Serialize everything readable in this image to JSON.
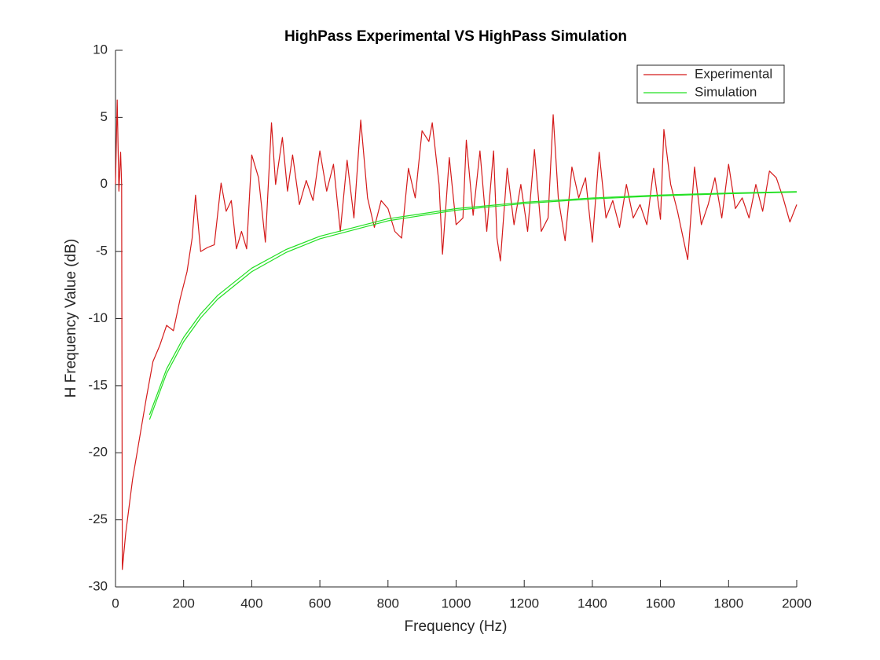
{
  "chart_data": {
    "type": "line",
    "title": "HighPass Experimental VS HighPass Simulation",
    "x_label": "Frequency (Hz)",
    "y_label": "H Frequency Value (dB)",
    "xlim": [
      0,
      2000
    ],
    "ylim": [
      -30,
      10
    ],
    "xticks": [
      0,
      200,
      400,
      600,
      800,
      1000,
      1200,
      1400,
      1600,
      1800,
      2000
    ],
    "yticks": [
      -30,
      -25,
      -20,
      -15,
      -10,
      -5,
      0,
      5,
      10
    ],
    "grid": false,
    "legend": "top-right",
    "series": [
      {
        "name": "Experimental",
        "color": "#d41a1a",
        "legend": true,
        "x": [
          0,
          5,
          10,
          15,
          18,
          20,
          30,
          50,
          70,
          90,
          110,
          130,
          150,
          170,
          190,
          210,
          225,
          235,
          250,
          270,
          290,
          310,
          325,
          340,
          355,
          370,
          385,
          400,
          420,
          440,
          458,
          470,
          490,
          505,
          520,
          540,
          560,
          580,
          600,
          620,
          640,
          660,
          680,
          700,
          720,
          740,
          760,
          780,
          800,
          820,
          840,
          860,
          880,
          900,
          920,
          930,
          950,
          960,
          980,
          1000,
          1020,
          1030,
          1050,
          1070,
          1090,
          1110,
          1120,
          1130,
          1150,
          1170,
          1190,
          1210,
          1230,
          1250,
          1270,
          1285,
          1300,
          1320,
          1340,
          1360,
          1380,
          1400,
          1420,
          1440,
          1460,
          1480,
          1500,
          1520,
          1540,
          1560,
          1580,
          1600,
          1610,
          1630,
          1650,
          1680,
          1700,
          1720,
          1740,
          1760,
          1780,
          1800,
          1820,
          1840,
          1860,
          1880,
          1900,
          1920,
          1940,
          1960,
          1980,
          2000
        ],
        "values": [
          0,
          6.3,
          -0.5,
          2.4,
          0,
          -28.7,
          -26,
          -22,
          -19,
          -16,
          -13.2,
          -12,
          -10.5,
          -10.9,
          -8.5,
          -6.5,
          -4,
          -0.8,
          -5,
          -4.7,
          -4.5,
          0.1,
          -2,
          -1.2,
          -4.8,
          -3.5,
          -4.8,
          2.2,
          0.5,
          -4.3,
          4.6,
          0,
          3.5,
          -0.5,
          2.2,
          -1.5,
          0.3,
          -1.2,
          2.5,
          -0.5,
          1.5,
          -3.5,
          1.8,
          -2.5,
          4.8,
          -1,
          -3.2,
          -1.2,
          -1.8,
          -3.5,
          -4,
          1.2,
          -1,
          4,
          3.2,
          4.6,
          0,
          -5.2,
          2,
          -3,
          -2.5,
          3.3,
          -2.3,
          2.5,
          -3.5,
          2.5,
          -4,
          -5.7,
          1.2,
          -3,
          0,
          -3.5,
          2.6,
          -3.5,
          -2.5,
          5.2,
          -1,
          -4.2,
          1.3,
          -1,
          0.5,
          -4.3,
          2.4,
          -2.5,
          -1.2,
          -3.2,
          0,
          -2.5,
          -1.5,
          -3,
          1.2,
          -2.6,
          4.1,
          0,
          -2,
          -5.6,
          1.3,
          -3,
          -1.5,
          0.5,
          -2.5,
          1.5,
          -1.8,
          -1,
          -2.5,
          0,
          -2,
          1,
          0.5,
          -1,
          -2.8,
          -1.5
        ]
      },
      {
        "name": "Simulation",
        "color": "#22e022",
        "legend": true,
        "x": [
          100,
          150,
          200,
          250,
          300,
          400,
          500,
          600,
          800,
          1000,
          1200,
          1400,
          1600,
          1800,
          2000
        ],
        "values": [
          -17.52,
          -14.09,
          -11.72,
          -9.95,
          -8.55,
          -6.5,
          -5.08,
          -4.05,
          -2.71,
          -1.92,
          -1.42,
          -1.08,
          -0.85,
          -0.69,
          -0.57
        ]
      },
      {
        "color": "#22e022",
        "legend": false,
        "x": [
          100,
          150,
          200,
          250,
          300,
          400,
          500,
          600,
          800,
          1000,
          1200,
          1400,
          1600,
          1800,
          2000
        ],
        "values": [
          -17.17,
          -13.75,
          -11.4,
          -9.65,
          -8.27,
          -6.24,
          -4.86,
          -3.86,
          -2.56,
          -1.8,
          -1.33,
          -1.01,
          -0.79,
          -0.64,
          -0.53
        ]
      }
    ]
  }
}
